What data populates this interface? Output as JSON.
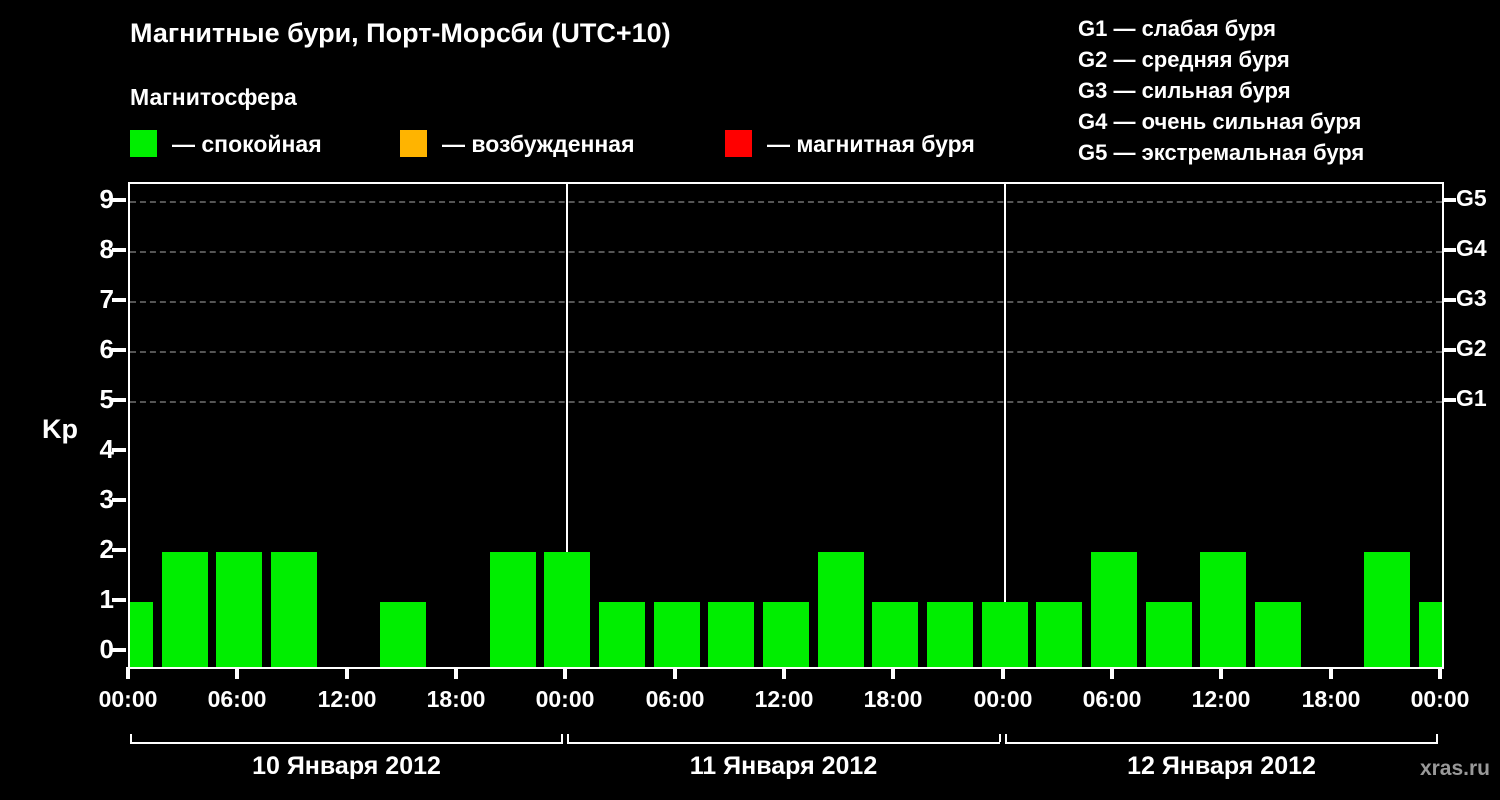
{
  "title": "Магнитные бури, Порт-Морсби (UTC+10)",
  "magnetosphere": {
    "label": "Магнитосфера",
    "legend": [
      {
        "name": "quiet",
        "color": "#00ee00",
        "label": "— спокойная"
      },
      {
        "name": "excited",
        "color": "#ffb400",
        "label": "— возбужденная"
      },
      {
        "name": "storm",
        "color": "#ff0000",
        "label": "— магнитная буря"
      }
    ]
  },
  "storm_scale": [
    {
      "code": "G1",
      "label": "— слабая буря"
    },
    {
      "code": "G2",
      "label": "— средняя буря"
    },
    {
      "code": "G3",
      "label": "— сильная буря"
    },
    {
      "code": "G4",
      "label": "— очень сильная буря"
    },
    {
      "code": "G5",
      "label": "— экстремальная буря"
    }
  ],
  "watermark": "xras.ru",
  "chart_data": {
    "type": "bar",
    "title": "Магнитные бури, Порт-Морсби (UTC+10)",
    "ylabel": "Kp",
    "ylim": [
      0,
      9.5
    ],
    "yticks": [
      0,
      1,
      2,
      3,
      4,
      5,
      6,
      7,
      8,
      9
    ],
    "grid_kp_levels": [
      5,
      6,
      7,
      8,
      9
    ],
    "grid_style": "dashed",
    "legend_position": "top",
    "right_axis": [
      {
        "kp": 5,
        "label": "G1"
      },
      {
        "kp": 6,
        "label": "G2"
      },
      {
        "kp": 7,
        "label": "G3"
      },
      {
        "kp": 8,
        "label": "G4"
      },
      {
        "kp": 9,
        "label": "G5"
      }
    ],
    "x_total_hours": 72,
    "xtick_interval_hours": 6,
    "xtick_labels": [
      "00:00",
      "06:00",
      "12:00",
      "18:00",
      "00:00",
      "06:00",
      "12:00",
      "18:00",
      "00:00",
      "06:00",
      "12:00",
      "18:00",
      "00:00"
    ],
    "day_divider_hours": [
      24,
      48
    ],
    "days": [
      "10 Января 2012",
      "11 Января 2012",
      "12 Января 2012"
    ],
    "bar_color": "#00ee00",
    "bars": [
      {
        "end_hour": 0,
        "kp": 1
      },
      {
        "end_hour": 3,
        "kp": 2
      },
      {
        "end_hour": 6,
        "kp": 2
      },
      {
        "end_hour": 9,
        "kp": 2
      },
      {
        "end_hour": 12,
        "kp": 0
      },
      {
        "end_hour": 15,
        "kp": 1
      },
      {
        "end_hour": 18,
        "kp": 0
      },
      {
        "end_hour": 21,
        "kp": 2
      },
      {
        "end_hour": 24,
        "kp": 2
      },
      {
        "end_hour": 27,
        "kp": 1
      },
      {
        "end_hour": 30,
        "kp": 1
      },
      {
        "end_hour": 33,
        "kp": 1
      },
      {
        "end_hour": 36,
        "kp": 1
      },
      {
        "end_hour": 39,
        "kp": 2
      },
      {
        "end_hour": 42,
        "kp": 1
      },
      {
        "end_hour": 45,
        "kp": 1
      },
      {
        "end_hour": 48,
        "kp": 1
      },
      {
        "end_hour": 51,
        "kp": 1
      },
      {
        "end_hour": 54,
        "kp": 2
      },
      {
        "end_hour": 57,
        "kp": 1
      },
      {
        "end_hour": 60,
        "kp": 2
      },
      {
        "end_hour": 63,
        "kp": 1
      },
      {
        "end_hour": 66,
        "kp": 0
      },
      {
        "end_hour": 69,
        "kp": 2
      },
      {
        "end_hour": 72,
        "kp": 1
      }
    ]
  }
}
